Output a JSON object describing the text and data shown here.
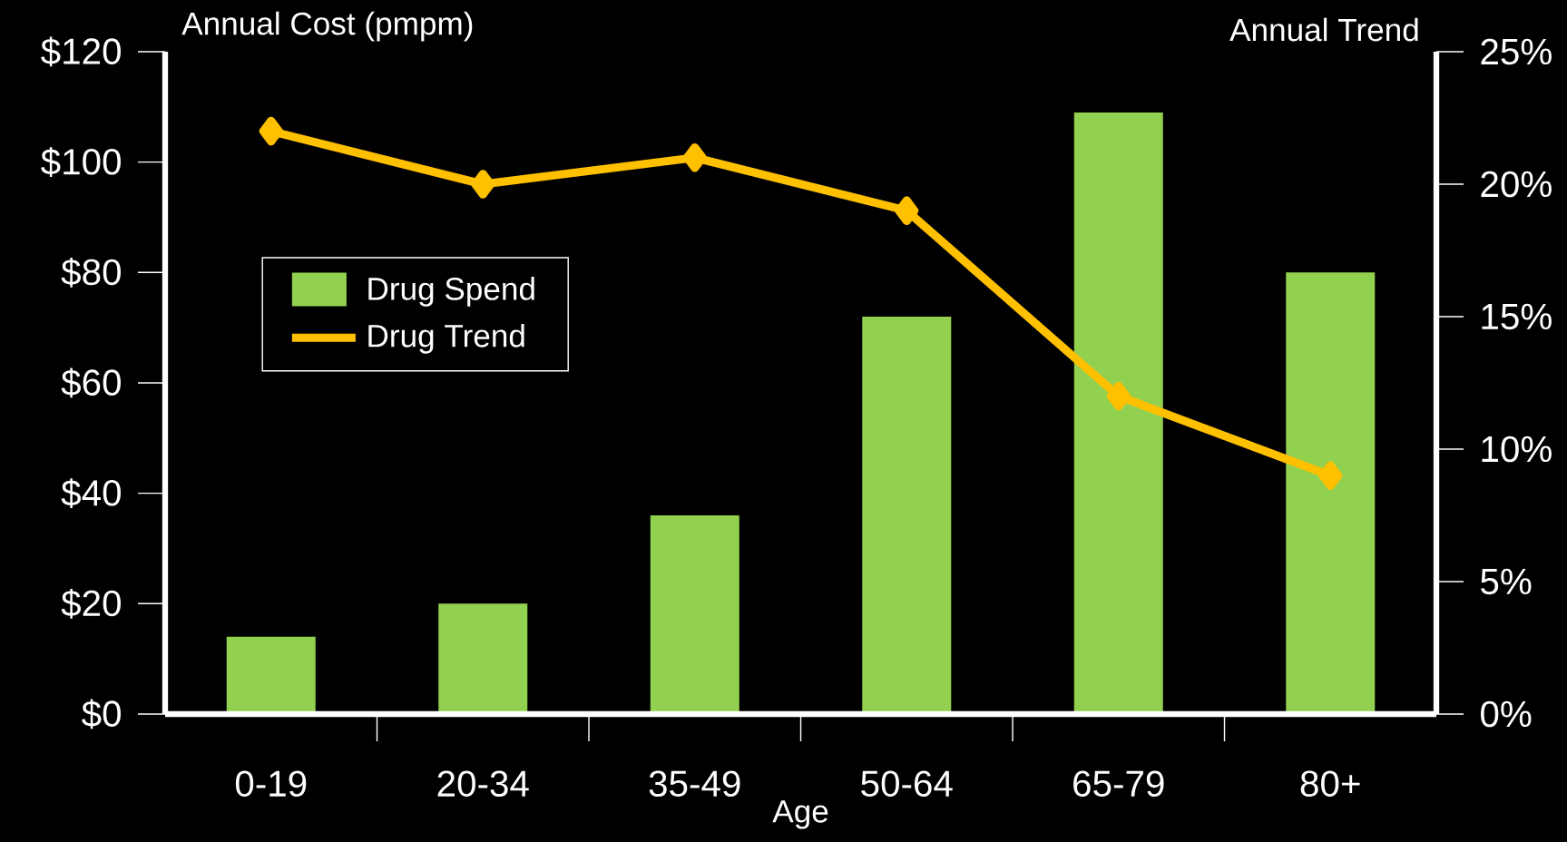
{
  "chart_data": {
    "type": "bar",
    "categories": [
      "0-19",
      "20-34",
      "35-49",
      "50-64",
      "65-79",
      "80+"
    ],
    "xlabel": "Age",
    "ylabel": "Annual Cost (pmpm)",
    "y2label": "Annual Trend",
    "series": [
      {
        "name": "Drug Spend",
        "color": "#92d050",
        "values": [
          14,
          20,
          36,
          72,
          109,
          80
        ]
      },
      {
        "name": "Drug Trend",
        "type": "line",
        "axis": "y2",
        "color": "#ffc000",
        "marker": "diamond",
        "values": [
          22,
          20,
          21,
          19,
          12,
          9
        ]
      }
    ],
    "ylim": [
      0,
      120
    ],
    "yticks": [
      {
        "value": 0,
        "label": "$0"
      },
      {
        "value": 20,
        "label": "$20"
      },
      {
        "value": 40,
        "label": "$40"
      },
      {
        "value": 60,
        "label": "$60"
      },
      {
        "value": 80,
        "label": "$80"
      },
      {
        "value": 100,
        "label": "$100"
      },
      {
        "value": 120,
        "label": "$120"
      }
    ],
    "y2lim": [
      0,
      25
    ],
    "y2ticks": [
      {
        "value": 0,
        "label": "0%"
      },
      {
        "value": 5,
        "label": "5%"
      },
      {
        "value": 10,
        "label": "10%"
      },
      {
        "value": 15,
        "label": "15%"
      },
      {
        "value": 20,
        "label": "20%"
      },
      {
        "value": 25,
        "label": "25%"
      }
    ],
    "legend": "top left"
  }
}
